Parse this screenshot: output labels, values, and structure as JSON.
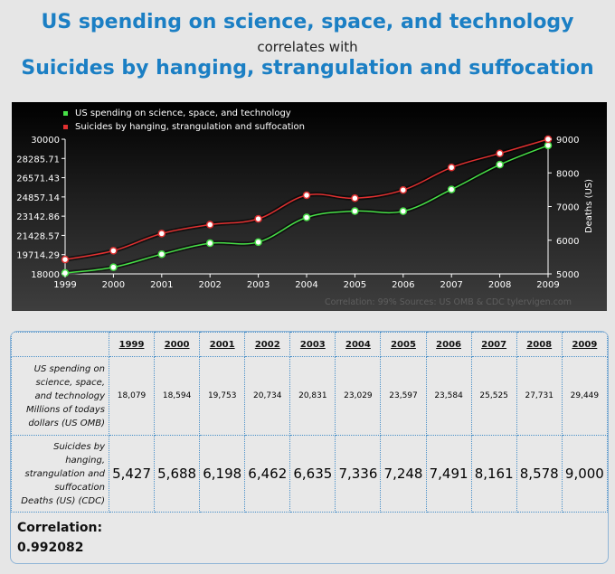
{
  "header": {
    "title_top": "US spending on science, space, and technology",
    "connector": "correlates with",
    "title_bottom": "Suicides by hanging, strangulation and suffocation"
  },
  "chart_data": {
    "type": "line",
    "x": [
      "1999",
      "2000",
      "2001",
      "2002",
      "2003",
      "2004",
      "2005",
      "2006",
      "2007",
      "2008",
      "2009"
    ],
    "series": [
      {
        "name": "US spending on science, space, and technology",
        "axis": "left",
        "color": "#47e047",
        "values": [
          18079,
          18594,
          19753,
          20734,
          20831,
          23029,
          23597,
          23584,
          25525,
          27731,
          29449
        ]
      },
      {
        "name": "Suicides by hanging, strangulation and suffocation",
        "axis": "right",
        "color": "#e03030",
        "values": [
          5427,
          5688,
          6198,
          6462,
          6635,
          7336,
          7248,
          7491,
          8161,
          8578,
          9000
        ]
      }
    ],
    "left_axis": {
      "ticks": [
        "30000",
        "28285.71",
        "26571.43",
        "24857.14",
        "23142.86",
        "21428.57",
        "19714.29",
        "18000"
      ],
      "ylim": [
        18000,
        30000
      ]
    },
    "right_axis": {
      "ticks": [
        "9000",
        "8000",
        "7000",
        "6000",
        "5000"
      ],
      "ylim": [
        5000,
        9000
      ],
      "label": "Deaths (US)"
    },
    "footer": "Correlation: 99%    Sources: US OMB & CDC    tylervigen.com"
  },
  "table": {
    "years": [
      "1999",
      "2000",
      "2001",
      "2002",
      "2003",
      "2004",
      "2005",
      "2006",
      "2007",
      "2008",
      "2009"
    ],
    "row1": {
      "label_lines": [
        "US spending on",
        "science, space,",
        "and technology"
      ],
      "unit_lines": [
        "Millions of todays",
        "dollars (US OMB)"
      ],
      "values": [
        "18,079",
        "18,594",
        "19,753",
        "20,734",
        "20,831",
        "23,029",
        "23,597",
        "23,584",
        "25,525",
        "27,731",
        "29,449"
      ]
    },
    "row2": {
      "label_lines": [
        "Suicides by",
        "hanging,",
        "strangulation and",
        "suffocation"
      ],
      "unit_lines": [
        "Deaths (US) (CDC)"
      ],
      "values": [
        "5,427",
        "5,688",
        "6,198",
        "6,462",
        "6,635",
        "7,336",
        "7,248",
        "7,491",
        "8,161",
        "8,578",
        "9,000"
      ]
    }
  },
  "correlation": {
    "label": "Correlation:",
    "value": "0.992082"
  }
}
